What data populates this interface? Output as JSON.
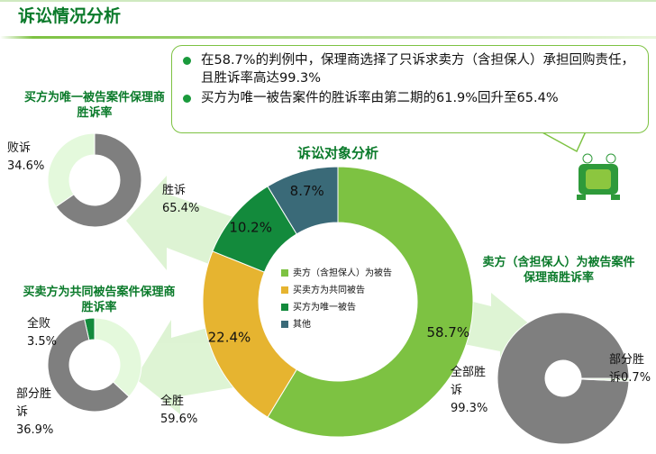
{
  "header": {
    "title": "诉讼情况分析"
  },
  "callout": {
    "bullets": [
      "在58.7%的判例中，保理商选择了只诉求卖方（含担保人）承担回购责任，且胜诉率高达99.3%",
      "买方为唯一被告案件的胜诉率由第二期的61.9%回升至65.4%"
    ]
  },
  "chart_data": [
    {
      "type": "donut",
      "title": "诉讼对象分析",
      "categories": [
        "卖方（含担保人）为被告",
        "买卖方为共同被告",
        "买方为唯一被告",
        "其他"
      ],
      "values": [
        58.7,
        22.4,
        10.2,
        8.7
      ],
      "value_labels": [
        "58.7%",
        "22.4%",
        "10.2%",
        "8.7%"
      ],
      "colors": [
        "#7dc242",
        "#e6b430",
        "#138a3c",
        "#3a6a78"
      ],
      "legend": true
    },
    {
      "type": "donut",
      "title": "买方为唯一被告案件保理商胜诉率",
      "categories": [
        "败诉",
        "胜诉"
      ],
      "values": [
        34.6,
        65.4
      ],
      "value_labels": [
        "34.6%",
        "65.4%"
      ],
      "colors": [
        "#e4f9dc",
        "#7f7f7f"
      ]
    },
    {
      "type": "donut",
      "title": "买卖方为共同被告案件保理商胜诉率",
      "categories": [
        "全败",
        "部分胜诉",
        "全胜"
      ],
      "values": [
        3.5,
        36.9,
        59.6
      ],
      "value_labels": [
        "3.5%",
        "36.9%",
        "59.6%"
      ],
      "colors": [
        "#138a3c",
        "#e4f9dc",
        "#7f7f7f"
      ]
    },
    {
      "type": "donut",
      "title": "卖方（含担保人）为被告案件保理商胜诉率",
      "categories": [
        "全部胜诉",
        "部分胜诉"
      ],
      "values": [
        99.3,
        0.7
      ],
      "value_labels": [
        "99.3%",
        "0.7%"
      ],
      "colors": [
        "#7f7f7f",
        "#e4f9dc"
      ]
    }
  ]
}
